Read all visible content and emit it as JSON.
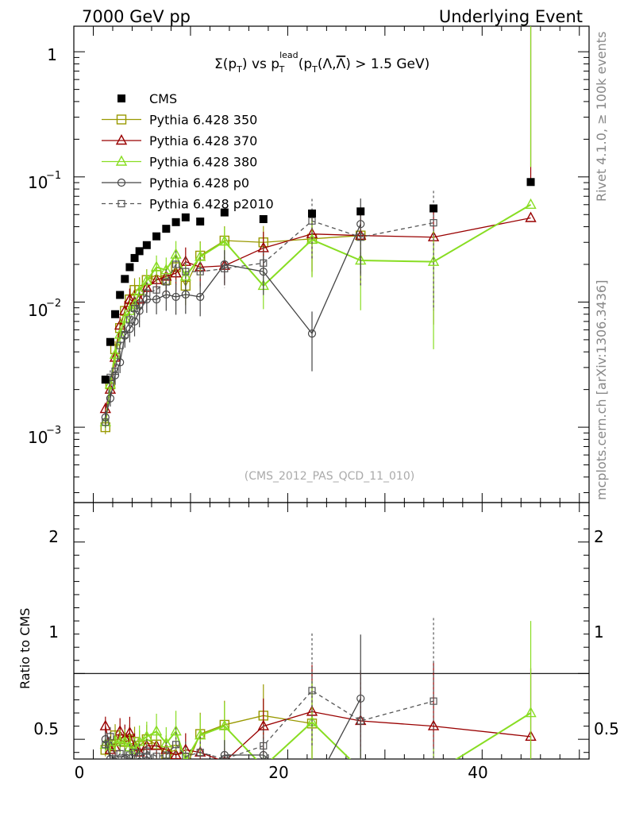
{
  "header": {
    "left": "7000 GeV pp",
    "right": "Underlying Event"
  },
  "side": {
    "rivet": "Rivet 4.1.0, ≥ 100k events",
    "mcplots": "mcplots.cern.ch [arXiv:1306.3436]"
  },
  "plot": {
    "title_parts": [
      "Σ(p",
      "T",
      ") vs p",
      "lead",
      "T",
      " (p",
      "T",
      "(Λ,",
      "Λ",
      ") > 1.5 GeV)"
    ],
    "watermark": "(CMS_2012_PAS_QCD_11_010)",
    "ratio_ylabel": "Ratio to CMS",
    "main_tick_labels": [
      "1",
      "10",
      "−1",
      "10",
      "−2",
      "10",
      "−3"
    ],
    "ratio_tick_labels": [
      "2",
      "1",
      "0.5"
    ],
    "x_tick_labels": [
      "0",
      "20",
      "40"
    ]
  },
  "legend": [
    {
      "label": "CMS",
      "color": "#000000",
      "marker": "filled-square",
      "dash": false
    },
    {
      "label": "Pythia 6.428 350",
      "color": "#999900",
      "marker": "open-square",
      "dash": false
    },
    {
      "label": "Pythia 6.428 370",
      "color": "#990000",
      "marker": "open-triangle",
      "dash": false
    },
    {
      "label": "Pythia 6.428 380",
      "color": "#88dd22",
      "marker": "open-triangle",
      "dash": false
    },
    {
      "label": "Pythia 6.428 p0",
      "color": "#444444",
      "marker": "open-circle",
      "dash": false
    },
    {
      "label": "Pythia 6.428 p2010",
      "color": "#555555",
      "marker": "open-square-small",
      "dash": true
    }
  ],
  "chart_data": {
    "type": "scatter",
    "xlim": [
      -2,
      51
    ],
    "ylim_main": [
      0.00025,
      1.6
    ],
    "ylim_ratio": [
      0.35,
      2.3
    ],
    "x": [
      1.25,
      1.75,
      2.25,
      2.75,
      3.25,
      3.75,
      4.25,
      4.75,
      5.5,
      6.5,
      7.5,
      8.5,
      9.5,
      11,
      13.5,
      17.5,
      22.5,
      27.5,
      35,
      45
    ],
    "series": [
      {
        "name": "CMS",
        "values": [
          0.0024,
          0.0048,
          0.008,
          0.0114,
          0.0153,
          0.019,
          0.0225,
          0.0255,
          0.0285,
          0.0335,
          0.0385,
          0.0435,
          0.0475,
          0.044,
          0.052,
          0.046,
          0.051,
          0.053,
          0.056,
          0.091
        ]
      },
      {
        "name": "Pythia 6.428 350",
        "values": [
          0.001,
          0.0022,
          0.0042,
          0.0062,
          0.0085,
          0.0105,
          0.0125,
          0.0125,
          0.015,
          0.0165,
          0.015,
          0.019,
          0.0135,
          0.0235,
          0.031,
          0.03,
          0.032,
          0.034,
          null,
          null
        ]
      },
      {
        "name": "Pythia 6.428 370",
        "values": [
          0.0014,
          0.002,
          0.0036,
          0.0065,
          0.0085,
          0.0105,
          0.01,
          0.0105,
          0.013,
          0.015,
          0.016,
          0.017,
          0.021,
          0.019,
          0.0195,
          0.027,
          0.035,
          0.034,
          0.033,
          0.047
        ]
      },
      {
        "name": "Pythia 6.428 380",
        "values": [
          0.0011,
          0.0022,
          0.0038,
          0.0055,
          0.0074,
          0.0085,
          0.0095,
          0.0122,
          0.0148,
          0.019,
          0.018,
          0.024,
          0.016,
          0.023,
          0.0305,
          0.0135,
          0.0315,
          0.0215,
          0.021,
          0.06
        ]
      },
      {
        "name": "Pythia 6.428 p0",
        "values": [
          0.0012,
          0.0017,
          0.0026,
          0.0033,
          0.0054,
          0.0061,
          0.007,
          0.0085,
          0.0105,
          0.0105,
          0.0115,
          0.011,
          0.0115,
          0.011,
          0.02,
          0.0175,
          0.0056,
          0.042,
          null,
          null
        ]
      },
      {
        "name": "Pythia 6.428 p2010",
        "values": [
          0.0011,
          0.0025,
          0.0028,
          0.0045,
          0.0055,
          0.0072,
          0.0089,
          0.0095,
          0.0118,
          0.0125,
          0.0145,
          0.02,
          0.0175,
          0.0175,
          0.0185,
          0.0205,
          0.0445,
          0.033,
          0.043,
          null
        ]
      }
    ],
    "ratio_series": [
      {
        "name": "Pythia 6.428 350",
        "values": [
          0.42,
          0.46,
          0.53,
          0.5,
          0.48,
          0.5,
          0.48,
          0.45,
          0.5,
          0.46,
          0.39,
          0.42,
          0.28,
          0.54,
          0.61,
          0.68,
          0.62,
          null,
          null,
          null
        ]
      },
      {
        "name": "Pythia 6.428 370",
        "values": [
          0.6,
          0.42,
          0.44,
          0.56,
          0.51,
          0.55,
          0.44,
          0.4,
          0.45,
          0.45,
          0.42,
          0.38,
          0.42,
          0.4,
          0.33,
          0.6,
          0.71,
          0.64,
          0.6,
          0.52
        ]
      },
      {
        "name": "Pythia 6.428 380",
        "values": [
          0.46,
          0.45,
          0.48,
          0.48,
          0.48,
          0.44,
          0.42,
          0.48,
          0.52,
          0.56,
          0.47,
          0.56,
          0.34,
          0.53,
          0.6,
          0.29,
          0.63,
          0.27,
          0.24,
          0.7
        ]
      },
      {
        "name": "Pythia 6.428 p0",
        "values": [
          0.5,
          0.35,
          0.33,
          0.29,
          0.35,
          0.32,
          0.31,
          0.33,
          0.37,
          0.31,
          0.3,
          0.25,
          0.24,
          0.25,
          0.38,
          0.38,
          0.11,
          0.81,
          null,
          null
        ]
      },
      {
        "name": "Pythia 6.428 p2010",
        "values": [
          0.46,
          0.52,
          0.35,
          0.39,
          0.36,
          0.38,
          0.4,
          0.37,
          0.41,
          0.37,
          0.38,
          0.46,
          0.37,
          0.4,
          0.35,
          0.45,
          0.87,
          0.64,
          0.79,
          null
        ]
      }
    ],
    "xlabel": "",
    "ylabel": "Ratio to CMS"
  }
}
